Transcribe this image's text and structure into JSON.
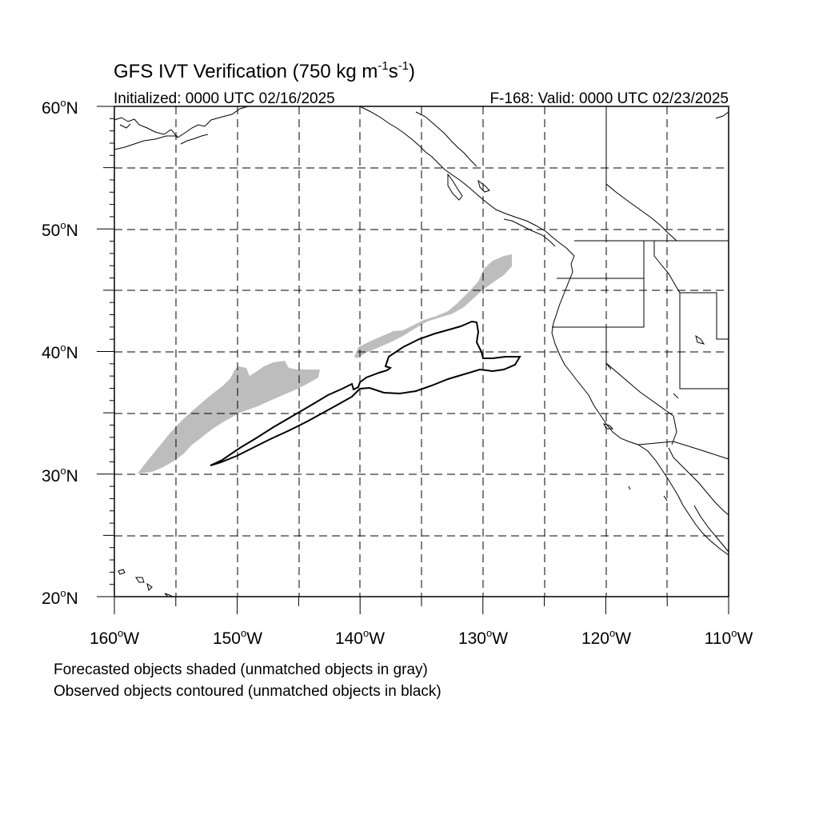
{
  "title": {
    "main": "GFS IVT Verification (750 kg m",
    "unit_exp1": "-1",
    "unit_mid": "s",
    "unit_exp2": "-1",
    "unit_close": ")"
  },
  "init_label": "Initialized: 0000 UTC 02/16/2025",
  "valid_label": "F-168: Valid: 0000 UTC 02/23/2025",
  "lat_axis": [
    {
      "num": "60",
      "hemi": "N"
    },
    {
      "num": "50",
      "hemi": "N"
    },
    {
      "num": "40",
      "hemi": "N"
    },
    {
      "num": "30",
      "hemi": "N"
    },
    {
      "num": "20",
      "hemi": "N"
    }
  ],
  "lon_axis": [
    {
      "num": "160",
      "hemi": "W"
    },
    {
      "num": "150",
      "hemi": "W"
    },
    {
      "num": "140",
      "hemi": "W"
    },
    {
      "num": "130",
      "hemi": "W"
    },
    {
      "num": "120",
      "hemi": "W"
    },
    {
      "num": "110",
      "hemi": "W"
    }
  ],
  "degree_symbol": "o",
  "legend": {
    "line1": "Forecasted objects shaded (unmatched objects in gray)",
    "line2": "Observed objects contoured (unmatched objects in black)"
  },
  "map": {
    "lon_range": [
      -160,
      -110
    ],
    "lat_range": [
      20,
      60
    ],
    "grid_interval_deg": 5,
    "forecast_fill_color": "#bdbdbd",
    "observed_contour_color": "#000000",
    "coastline_color": "#000000"
  }
}
